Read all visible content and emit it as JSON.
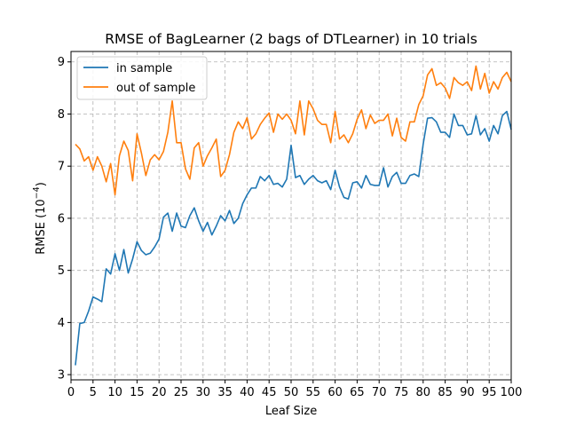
{
  "chart_data": {
    "type": "line",
    "title": "RMSE of BagLearner (2 bags of DTLearner) in 10 trials",
    "xlabel": "Leaf Size",
    "ylabel_main": "RMSE (10",
    "ylabel_exp": "−4",
    "ylabel_close": ")",
    "xlim": [
      0,
      100
    ],
    "ylim": [
      2.9,
      9.2
    ],
    "xticks": [
      0,
      5,
      10,
      15,
      20,
      25,
      30,
      35,
      40,
      45,
      50,
      55,
      60,
      65,
      70,
      75,
      80,
      85,
      90,
      95,
      100
    ],
    "yticks": [
      3,
      4,
      5,
      6,
      7,
      8,
      9
    ],
    "grid": true,
    "legend_position": "top-left",
    "x": [
      1,
      2,
      3,
      4,
      5,
      6,
      7,
      8,
      9,
      10,
      11,
      12,
      13,
      14,
      15,
      16,
      17,
      18,
      19,
      20,
      21,
      22,
      23,
      24,
      25,
      26,
      27,
      28,
      29,
      30,
      31,
      32,
      33,
      34,
      35,
      36,
      37,
      38,
      39,
      40,
      41,
      42,
      43,
      44,
      45,
      46,
      47,
      48,
      49,
      50,
      51,
      52,
      53,
      54,
      55,
      56,
      57,
      58,
      59,
      60,
      61,
      62,
      63,
      64,
      65,
      66,
      67,
      68,
      69,
      70,
      71,
      72,
      73,
      74,
      75,
      76,
      77,
      78,
      79,
      80,
      81,
      82,
      83,
      84,
      85,
      86,
      87,
      88,
      89,
      90,
      91,
      92,
      93,
      94,
      95,
      96,
      97,
      98,
      99,
      100
    ],
    "series": [
      {
        "name": "in sample",
        "color": "#1f77b4",
        "values": [
          3.18,
          3.98,
          4.0,
          4.22,
          4.49,
          4.45,
          4.4,
          5.03,
          4.93,
          5.32,
          5.0,
          5.4,
          4.95,
          5.22,
          5.55,
          5.38,
          5.3,
          5.33,
          5.45,
          5.6,
          6.02,
          6.1,
          5.75,
          6.1,
          5.85,
          5.82,
          6.05,
          6.2,
          5.95,
          5.75,
          5.92,
          5.68,
          5.85,
          6.05,
          5.95,
          6.15,
          5.9,
          6.0,
          6.28,
          6.45,
          6.58,
          6.58,
          6.8,
          6.72,
          6.82,
          6.65,
          6.67,
          6.6,
          6.75,
          7.4,
          6.78,
          6.82,
          6.65,
          6.75,
          6.82,
          6.72,
          6.68,
          6.72,
          6.55,
          6.92,
          6.6,
          6.4,
          6.37,
          6.68,
          6.7,
          6.58,
          6.82,
          6.65,
          6.63,
          6.63,
          6.97,
          6.6,
          6.8,
          6.88,
          6.67,
          6.67,
          6.82,
          6.85,
          6.8,
          7.42,
          7.92,
          7.93,
          7.85,
          7.65,
          7.65,
          7.55,
          8.0,
          7.78,
          7.78,
          7.6,
          7.62,
          7.97,
          7.6,
          7.72,
          7.48,
          7.78,
          7.62,
          7.97,
          8.05,
          7.7
        ]
      },
      {
        "name": "out of sample",
        "color": "#ff7f0e",
        "values": [
          7.42,
          7.33,
          7.1,
          7.18,
          6.92,
          7.18,
          7.0,
          6.7,
          7.05,
          6.45,
          7.2,
          7.48,
          7.3,
          6.72,
          7.62,
          7.25,
          6.82,
          7.12,
          7.22,
          7.12,
          7.28,
          7.65,
          8.25,
          7.45,
          7.45,
          6.95,
          6.75,
          7.35,
          7.45,
          7.0,
          7.2,
          7.35,
          7.52,
          6.8,
          6.92,
          7.22,
          7.65,
          7.85,
          7.72,
          7.93,
          7.52,
          7.62,
          7.8,
          7.92,
          8.02,
          7.65,
          8.0,
          7.9,
          8.0,
          7.88,
          7.62,
          8.25,
          7.6,
          8.25,
          8.1,
          7.88,
          7.8,
          7.8,
          7.45,
          8.05,
          7.52,
          7.6,
          7.45,
          7.62,
          7.9,
          8.08,
          7.72,
          7.98,
          7.82,
          7.88,
          7.88,
          8.0,
          7.58,
          7.92,
          7.55,
          7.48,
          7.85,
          7.85,
          8.18,
          8.35,
          8.75,
          8.87,
          8.55,
          8.6,
          8.5,
          8.3,
          8.7,
          8.6,
          8.55,
          8.62,
          8.45,
          8.92,
          8.48,
          8.78,
          8.4,
          8.62,
          8.48,
          8.7,
          8.8,
          8.62
        ]
      }
    ]
  },
  "colors": {
    "axis": "#000000",
    "grid": "#b0b0b0",
    "background": "#ffffff"
  }
}
